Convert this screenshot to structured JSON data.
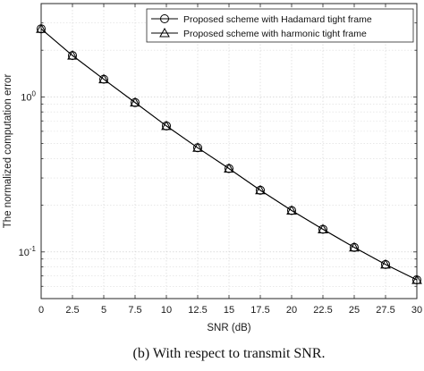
{
  "chart_data": {
    "type": "line",
    "xlabel": "SNR (dB)",
    "ylabel": "The normalized computation error",
    "xlim": [
      0,
      30
    ],
    "ylim": [
      0.05,
      4
    ],
    "yscale": "log",
    "grid": true,
    "legend_position": "top-right",
    "x_ticks": [
      "0",
      "2.5",
      "5",
      "7.5",
      "10",
      "12.5",
      "15",
      "17.5",
      "20",
      "22.5",
      "25",
      "27.5",
      "30"
    ],
    "x": [
      0,
      2.5,
      5,
      7.5,
      10,
      12.5,
      15,
      17.5,
      20,
      22.5,
      25,
      27.5,
      30
    ],
    "series": [
      {
        "name": "Proposed scheme with Hadamard tight frame",
        "marker": "circle",
        "values": [
          2.75,
          1.85,
          1.3,
          0.92,
          0.65,
          0.47,
          0.345,
          0.25,
          0.185,
          0.14,
          0.107,
          0.083,
          0.066
        ]
      },
      {
        "name": "Proposed scheme with harmonic tight frame",
        "marker": "triangle",
        "values": [
          2.75,
          1.85,
          1.3,
          0.92,
          0.65,
          0.47,
          0.345,
          0.25,
          0.185,
          0.14,
          0.107,
          0.083,
          0.066
        ]
      }
    ],
    "caption": "(b) With respect to transmit SNR."
  }
}
